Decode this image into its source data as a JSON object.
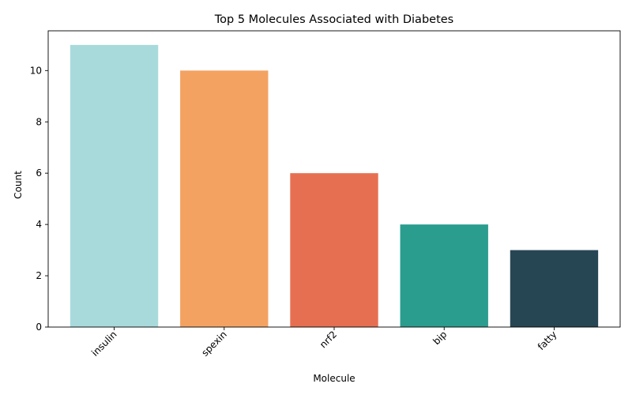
{
  "chart_data": {
    "type": "bar",
    "title": "Top 5 Molecules Associated with Diabetes",
    "xlabel": "Molecule",
    "ylabel": "Count",
    "categories": [
      "insulin",
      "spexin",
      "nrf2",
      "bip",
      "fatty"
    ],
    "values": [
      11,
      10,
      6,
      4,
      3
    ],
    "colors": [
      "#a8dadc",
      "#f4a261",
      "#e76f51",
      "#2a9d8f",
      "#264653"
    ],
    "ylim": [
      0,
      11.55
    ],
    "yticks": [
      0,
      2,
      4,
      6,
      8,
      10
    ],
    "xtick_rotation": 45,
    "grid": false,
    "legend": "none"
  }
}
